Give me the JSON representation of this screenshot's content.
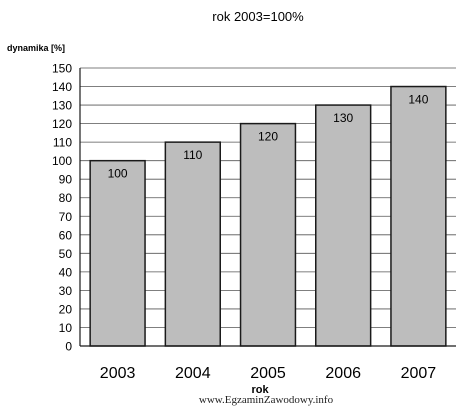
{
  "chart_data": {
    "type": "bar",
    "title": "rok 2003=100%",
    "ylabel": "dynamika [%]",
    "xlabel": "rok",
    "categories": [
      "2003",
      "2004",
      "2005",
      "2006",
      "2007"
    ],
    "values": [
      100,
      110,
      120,
      130,
      140
    ],
    "data_labels": [
      "100",
      "110",
      "120",
      "130",
      "140"
    ],
    "ylim": [
      0,
      150
    ],
    "ytick_step": 10,
    "grid": true,
    "legend": "none",
    "colors": {
      "bar_fill": "#bdbdbd",
      "bar_stroke": "#1a1a1a",
      "grid": "#555555",
      "axis": "#1a1a1a"
    }
  },
  "footer": {
    "watermark": "www.EgzaminZawodowy.info"
  }
}
